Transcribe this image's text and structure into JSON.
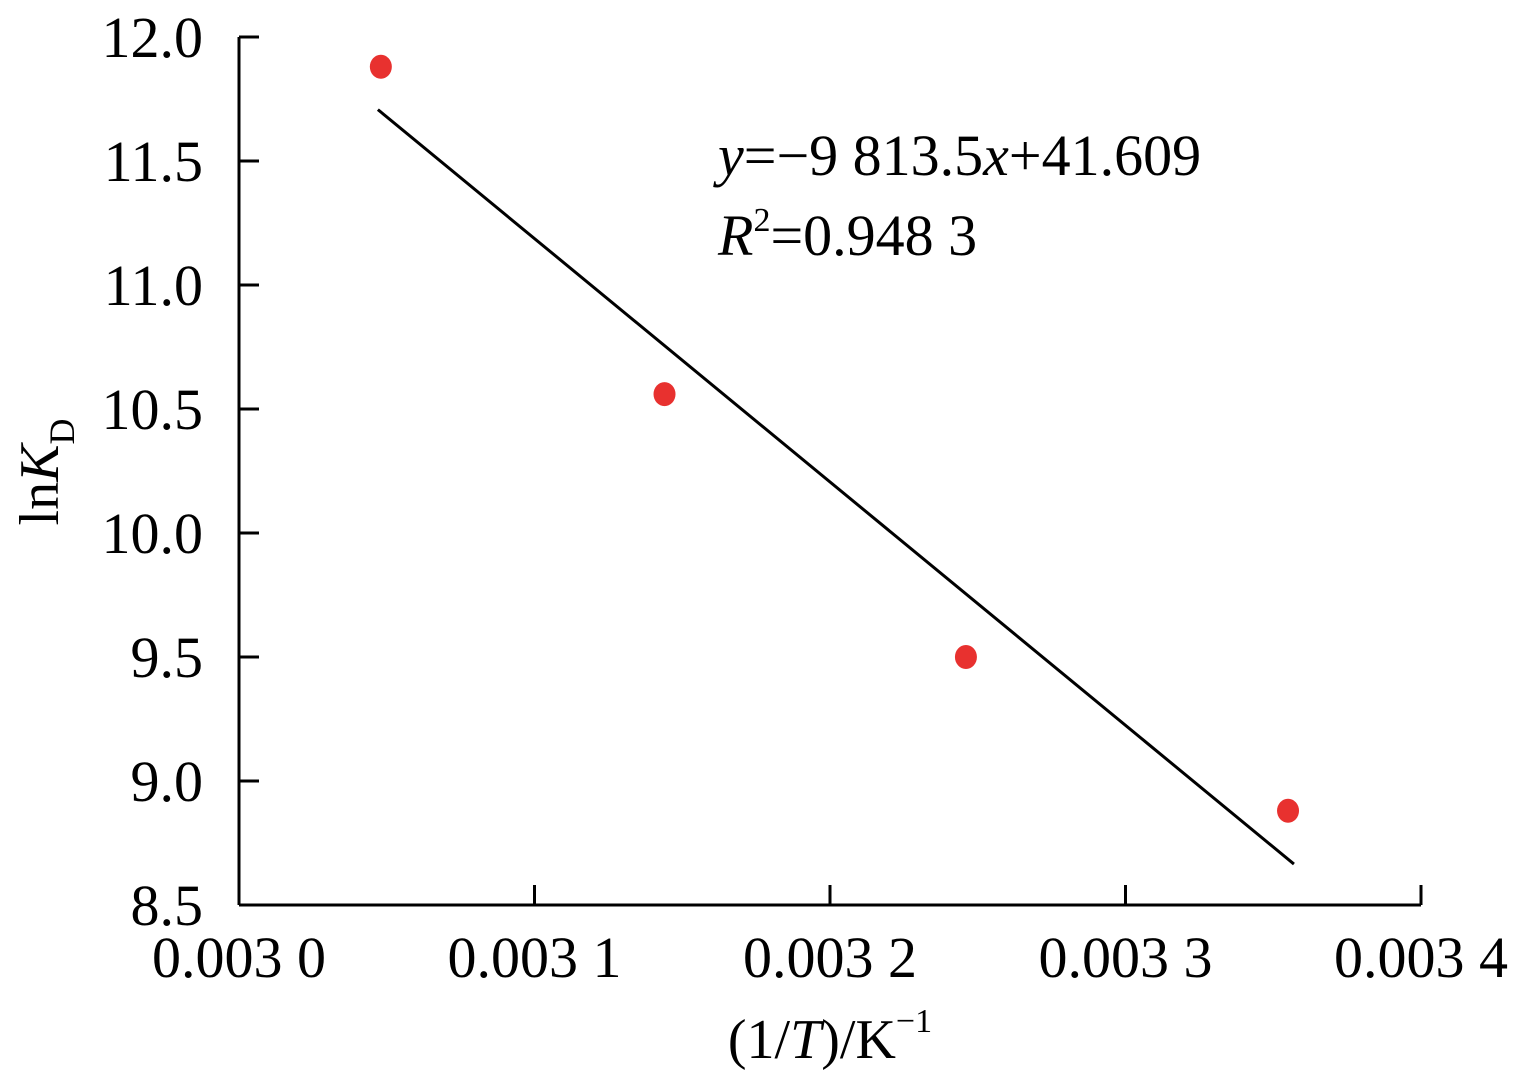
{
  "chart_data": {
    "type": "scatter",
    "xlabel_parts": {
      "open": "(1/",
      "var": "T",
      "close": ")/K",
      "sup": "−1"
    },
    "ylabel_parts": {
      "prefix": "ln",
      "var": "K",
      "sub": "D"
    },
    "xlim": [
      0.003,
      0.0034
    ],
    "ylim": [
      8.5,
      12.0
    ],
    "x_ticks": [
      0.003,
      0.0031,
      0.0032,
      0.0033,
      0.0034
    ],
    "x_tick_labels": [
      "0.003 0",
      "0.003 1",
      "0.003 2",
      "0.003 3",
      "0.003 4"
    ],
    "y_ticks": [
      8.5,
      9.0,
      9.5,
      10.0,
      10.5,
      11.0,
      11.5,
      12.0
    ],
    "y_tick_labels": [
      "8.5",
      "9.0",
      "9.5",
      "10.0",
      "10.5",
      "11.0",
      "11.5",
      "12.0"
    ],
    "points": [
      {
        "x": 0.003048,
        "y": 11.88
      },
      {
        "x": 0.003144,
        "y": 10.56
      },
      {
        "x": 0.003246,
        "y": 9.5
      },
      {
        "x": 0.003355,
        "y": 8.88
      }
    ],
    "trendline": {
      "slope": -9813.5,
      "intercept": 41.609,
      "x_range": [
        0.003047,
        0.003357
      ]
    },
    "equation": {
      "y_var": "y",
      "equals_slope": "=−9 813.5",
      "x_var": "x",
      "rest": "+41.609"
    },
    "r2": {
      "var": "R",
      "sup": "2",
      "value": "=0.948 3"
    },
    "grid": false,
    "colors": {
      "points": "#e8312f",
      "line": "#000000",
      "axis": "#000000"
    }
  }
}
